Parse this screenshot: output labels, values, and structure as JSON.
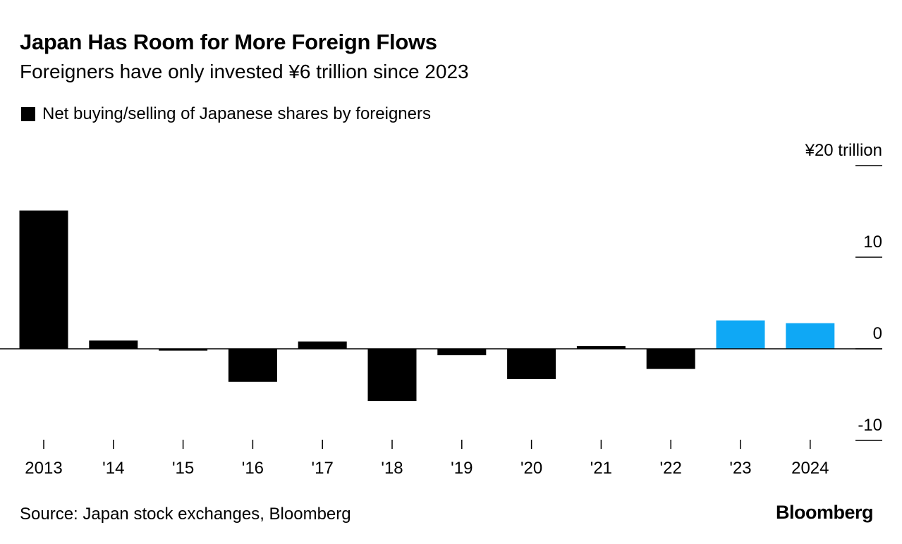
{
  "header": {
    "title": "Japan Has Room for More Foreign Flows",
    "subtitle": "Foreigners have only invested ¥6 trillion since 2023"
  },
  "legend": {
    "label": "Net buying/selling of Japanese shares by foreigners",
    "color": "#000000"
  },
  "footer": {
    "source": "Source: Japan stock exchanges, Bloomberg",
    "brand": "Bloomberg"
  },
  "chart_data": {
    "type": "bar",
    "title": "Japan Has Room for More Foreign Flows",
    "subtitle": "Foreigners have only invested ¥6 trillion since 2023",
    "xlabel": "",
    "ylabel": "¥ trillion",
    "categories": [
      "2013",
      "'14",
      "'15",
      "'16",
      "'17",
      "'18",
      "'19",
      "'20",
      "'21",
      "'22",
      "'23",
      "2024"
    ],
    "series": [
      {
        "name": "Net buying/selling of Japanese shares by foreigners",
        "values": [
          15.1,
          0.9,
          -0.2,
          -3.6,
          0.8,
          -5.7,
          -0.7,
          -3.3,
          0.3,
          -2.2,
          3.1,
          2.8
        ],
        "colors": [
          "#000000",
          "#000000",
          "#000000",
          "#000000",
          "#000000",
          "#000000",
          "#000000",
          "#000000",
          "#000000",
          "#000000",
          "#0fa8f5",
          "#0fa8f5"
        ]
      }
    ],
    "ylim": [
      -10,
      20
    ],
    "yticks": [
      {
        "value": 20,
        "label": "¥20 trillion"
      },
      {
        "value": 10,
        "label": "10"
      },
      {
        "value": 0,
        "label": "0"
      },
      {
        "value": -10,
        "label": "-10"
      }
    ],
    "legend_position": "top-left",
    "grid": false
  }
}
